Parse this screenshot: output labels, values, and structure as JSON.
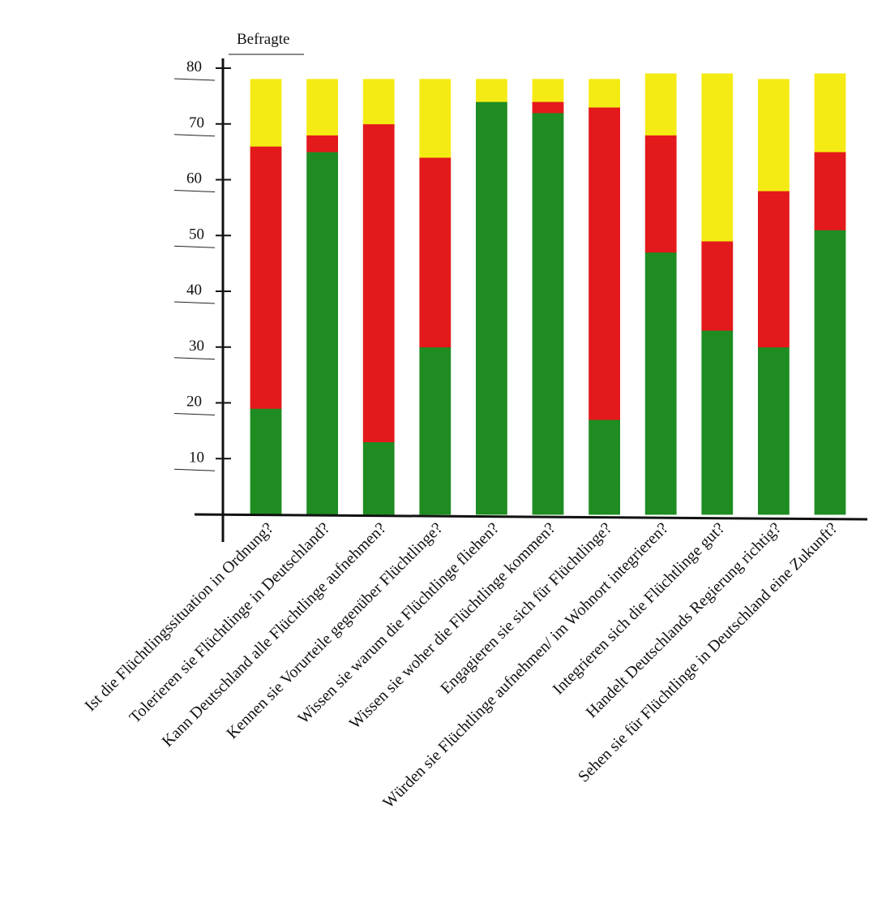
{
  "chart_data": {
    "type": "bar",
    "stacked": true,
    "ylabel": "Befragte",
    "ylim": [
      0,
      80
    ],
    "yticks": [
      10,
      20,
      30,
      40,
      50,
      60,
      70,
      80
    ],
    "grid": false,
    "legend": "none",
    "categories": [
      "Ist die Flüchtlingssituation in Ordnung?",
      "Tolerieren sie Flüchtlinge in Deutschland?",
      "Kann Deutschland alle Flüchtlinge aufnehmen?",
      "Kennen sie Vorurteile gegenüber Flüchtlinge?",
      "Wissen sie warum die Flüchtlinge fliehen?",
      "Wissen sie woher die Flüchtlinge kommen?",
      "Engagieren sie sich für Flüchtlinge?",
      "Würden sie Flüchtlinge aufnehmen/ im Wohnort integrieren?",
      "Integrieren sich die Flüchtlinge gut?",
      "Handelt Deutschlands Regierung richtig?",
      "Sehen sie für Flüchtlinge in Deutschland eine Zukunft?"
    ],
    "series": [
      {
        "color": "#1f8c22",
        "values": [
          19,
          65,
          13,
          30,
          74,
          72,
          17,
          47,
          33,
          30,
          51
        ]
      },
      {
        "color": "#e3191c",
        "values": [
          47,
          3,
          57,
          34,
          0,
          2,
          56,
          21,
          16,
          28,
          14
        ]
      },
      {
        "color": "#f5eb14",
        "values": [
          12,
          10,
          8,
          14,
          4,
          4,
          5,
          11,
          30,
          20,
          14
        ]
      }
    ]
  }
}
